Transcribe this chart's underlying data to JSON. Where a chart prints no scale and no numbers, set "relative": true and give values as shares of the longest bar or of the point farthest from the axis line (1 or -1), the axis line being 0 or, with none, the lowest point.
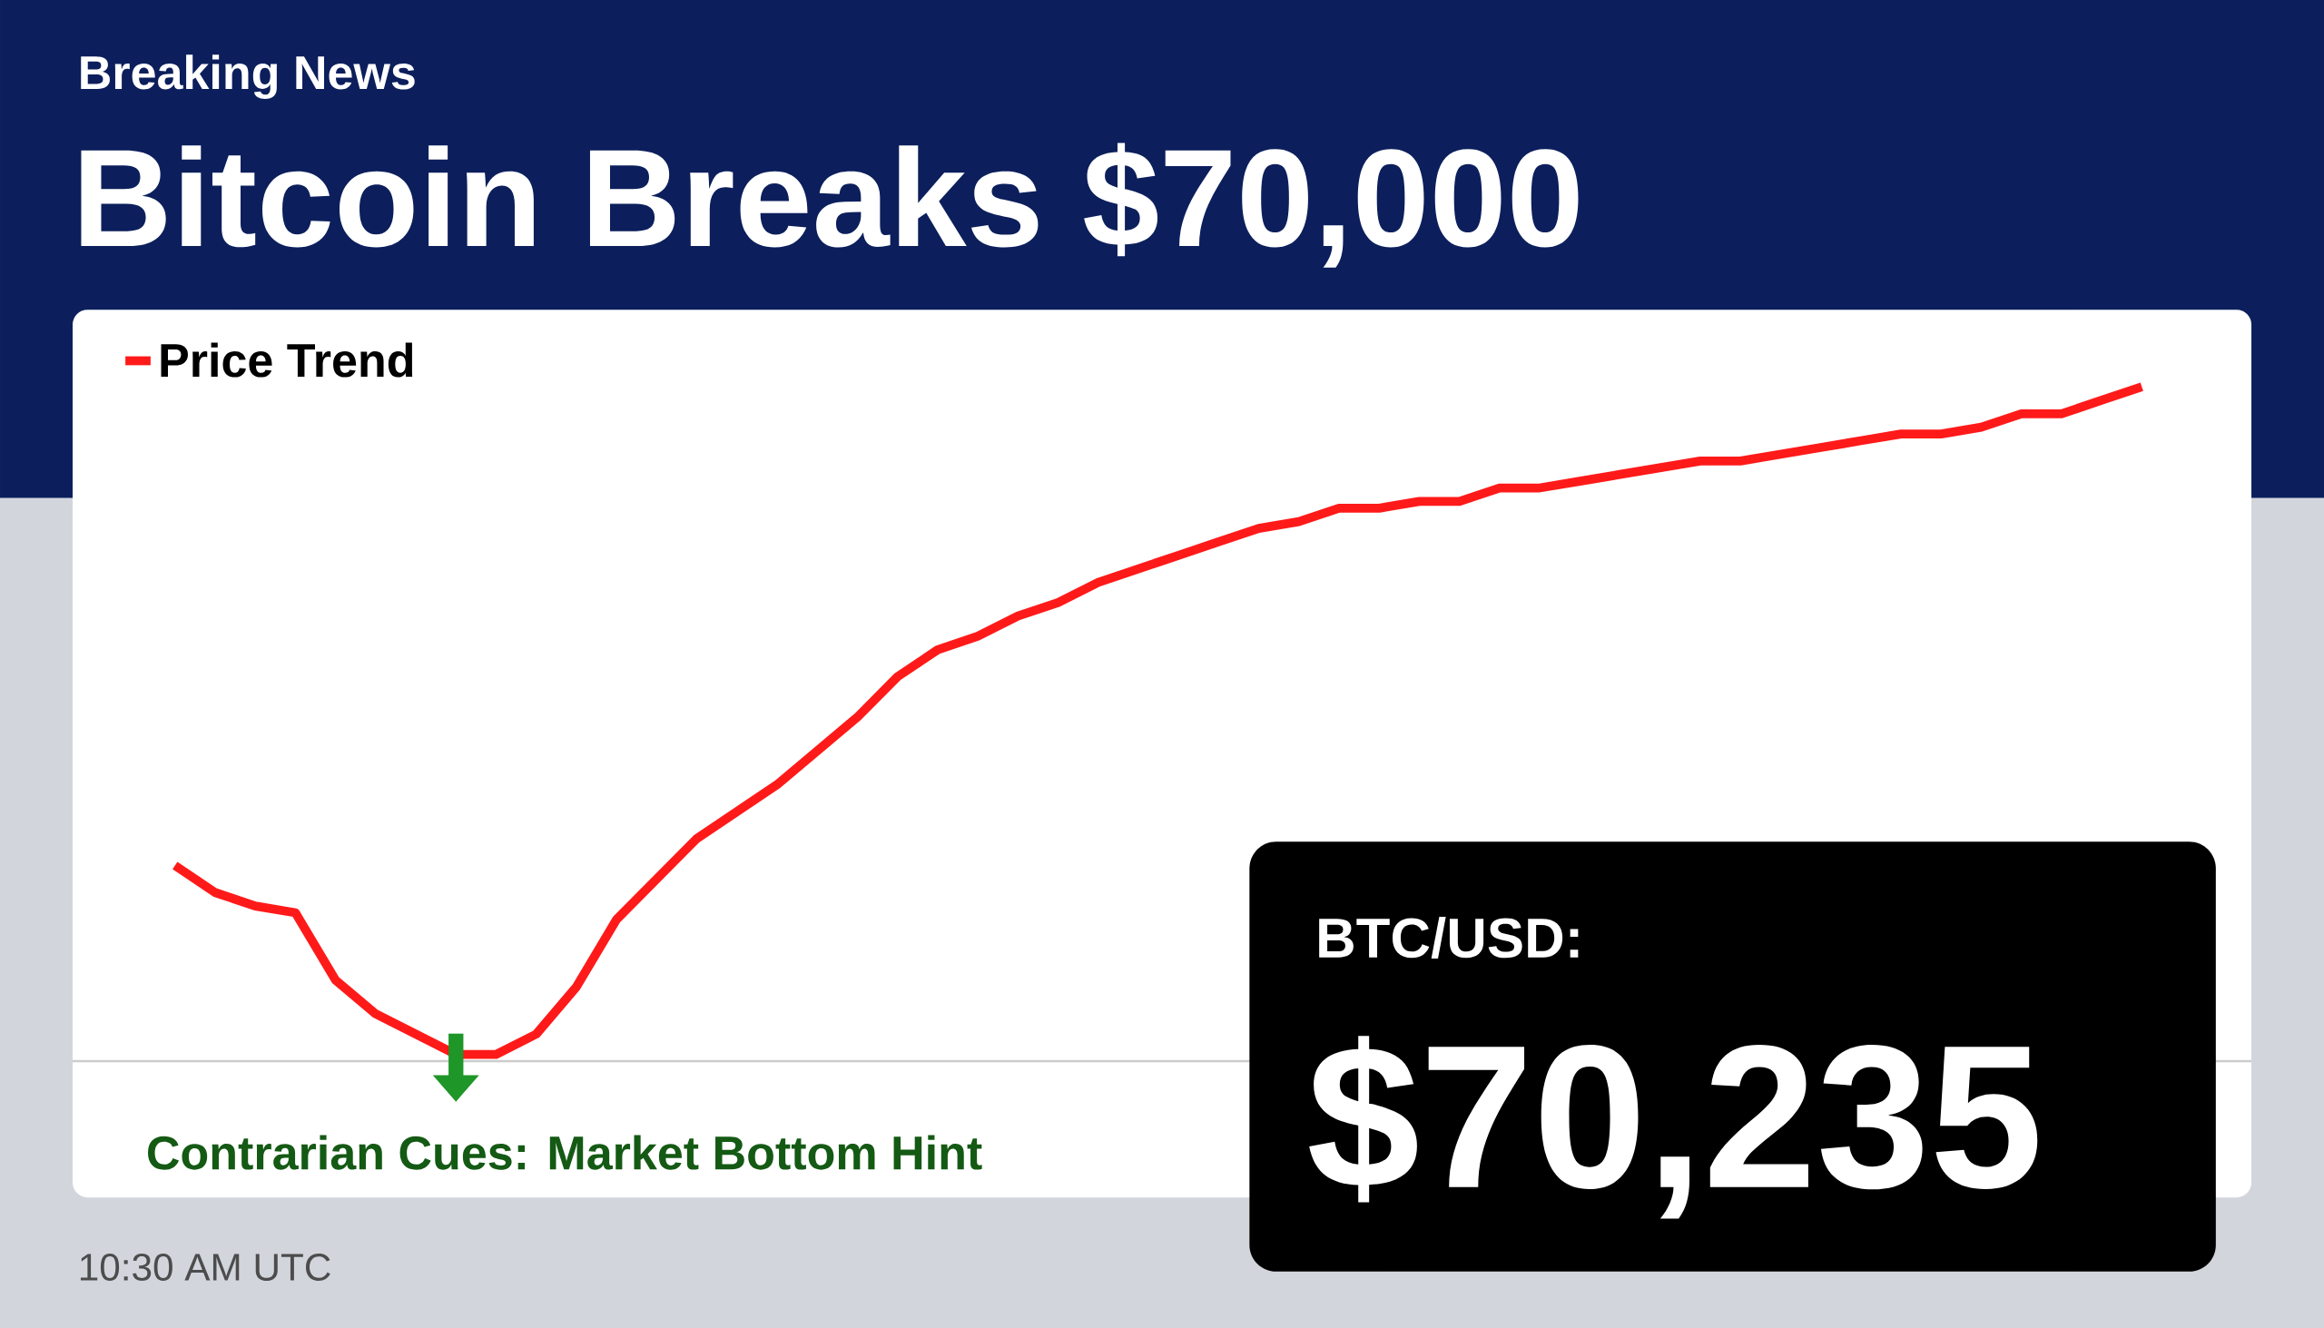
{
  "chart_data": {
    "type": "line",
    "title": "Bitcoin Breaks $70,000",
    "subtitle": "Breaking News",
    "relative": true,
    "legend": "top left",
    "categories": [
      null,
      null,
      null,
      null,
      null,
      null,
      null,
      null,
      null,
      null,
      null,
      null,
      null,
      null,
      null,
      null,
      null,
      null,
      null,
      null,
      null,
      null,
      null,
      null,
      null,
      null,
      null,
      null,
      null,
      null,
      null,
      null,
      null,
      null,
      null,
      null,
      null,
      null,
      null,
      null,
      null,
      null,
      null,
      null,
      null,
      null,
      null,
      null,
      null,
      null
    ],
    "series": [
      {
        "name": "Price Trend",
        "color": "#ff1a1a",
        "values": [
          0.29,
          0.25,
          0.23,
          0.22,
          0.12,
          0.07,
          0.04,
          0.01,
          0.01,
          0.04,
          0.11,
          0.21,
          0.27,
          0.33,
          0.37,
          0.41,
          0.46,
          0.51,
          0.57,
          0.61,
          0.63,
          0.66,
          0.68,
          0.71,
          0.73,
          0.75,
          0.77,
          0.79,
          0.8,
          0.82,
          0.82,
          0.83,
          0.83,
          0.85,
          0.85,
          0.86,
          0.87,
          0.88,
          0.89,
          0.89,
          0.9,
          0.91,
          0.92,
          0.93,
          0.93,
          0.94,
          0.96,
          0.96,
          0.98,
          1
        ]
      }
    ],
    "annotations": [
      "Contrarian Cues: Market Bottom Hint",
      "BTC/USD:",
      "$70,235",
      "10:30 AM UTC"
    ]
  }
}
